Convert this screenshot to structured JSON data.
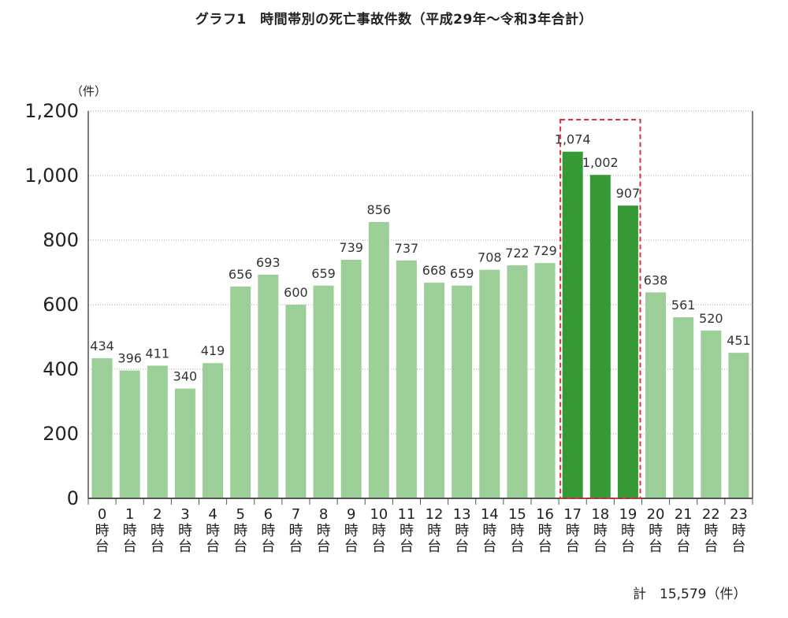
{
  "chart_data": {
    "type": "bar",
    "title": "グラフ1　時間帯別の死亡事故件数（平成29年～令和3年合計）",
    "ylabel": "（件）",
    "xlabel": "",
    "ylim": [
      0,
      1200
    ],
    "yticks": [
      "0",
      "200",
      "400",
      "600",
      "800",
      "1,000",
      "1,200"
    ],
    "ytick_values": [
      0,
      200,
      400,
      600,
      800,
      1000,
      1200
    ],
    "grid": true,
    "categories": [
      "0時台",
      "1時台",
      "2時台",
      "3時台",
      "4時台",
      "5時台",
      "6時台",
      "7時台",
      "8時台",
      "9時台",
      "10時台",
      "11時台",
      "12時台",
      "13時台",
      "14時台",
      "15時台",
      "16時台",
      "17時台",
      "18時台",
      "19時台",
      "20時台",
      "21時台",
      "22時台",
      "23時台"
    ],
    "category_numbers": [
      "0",
      "1",
      "2",
      "3",
      "4",
      "5",
      "6",
      "7",
      "8",
      "9",
      "10",
      "11",
      "12",
      "13",
      "14",
      "15",
      "16",
      "17",
      "18",
      "19",
      "20",
      "21",
      "22",
      "23"
    ],
    "category_suffix": [
      "時",
      "台"
    ],
    "values": [
      434,
      396,
      411,
      340,
      419,
      656,
      693,
      600,
      659,
      739,
      856,
      737,
      668,
      659,
      708,
      722,
      729,
      1074,
      1002,
      907,
      638,
      561,
      520,
      451
    ],
    "value_labels": [
      "434",
      "396",
      "411",
      "340",
      "419",
      "656",
      "693",
      "600",
      "659",
      "739",
      "856",
      "737",
      "668",
      "659",
      "708",
      "722",
      "729",
      "1,074",
      "1,002",
      "907",
      "638",
      "561",
      "520",
      "451"
    ],
    "highlight_indices": [
      17,
      18,
      19
    ],
    "colors": {
      "normal": "#9bcf97",
      "highlight": "#359a35",
      "highlight_box": "#e03030",
      "grid": "#aaaaaa",
      "axis": "#555555"
    },
    "annotation": "計　15,579（件）"
  }
}
